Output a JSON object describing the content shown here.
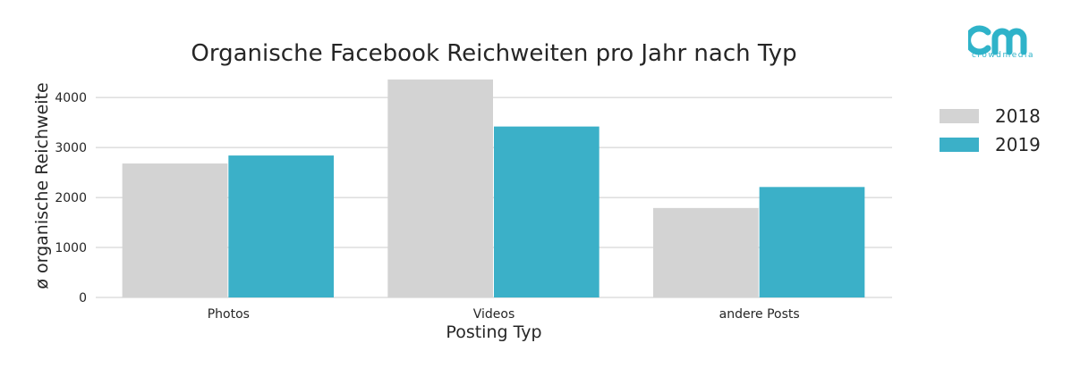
{
  "brand": {
    "wordmark": "crowdmedia",
    "color": "#2fb3c9"
  },
  "chart_data": {
    "type": "bar",
    "title": "Organische Facebook Reichweiten pro Jahr nach Typ",
    "xlabel": "Posting Typ",
    "ylabel": "ø organische Reichweite",
    "categories": [
      "Photos",
      "Videos",
      "andere Posts"
    ],
    "series": [
      {
        "name": "2018",
        "color": "#d3d3d3",
        "values": [
          2680,
          4360,
          1790
        ]
      },
      {
        "name": "2019",
        "color": "#3bb0c8",
        "values": [
          2840,
          3420,
          2210
        ]
      }
    ],
    "ylim": [
      0,
      4450
    ],
    "yticks": [
      0,
      1000,
      2000,
      3000,
      4000
    ],
    "grid": true,
    "legend_position": "right"
  }
}
